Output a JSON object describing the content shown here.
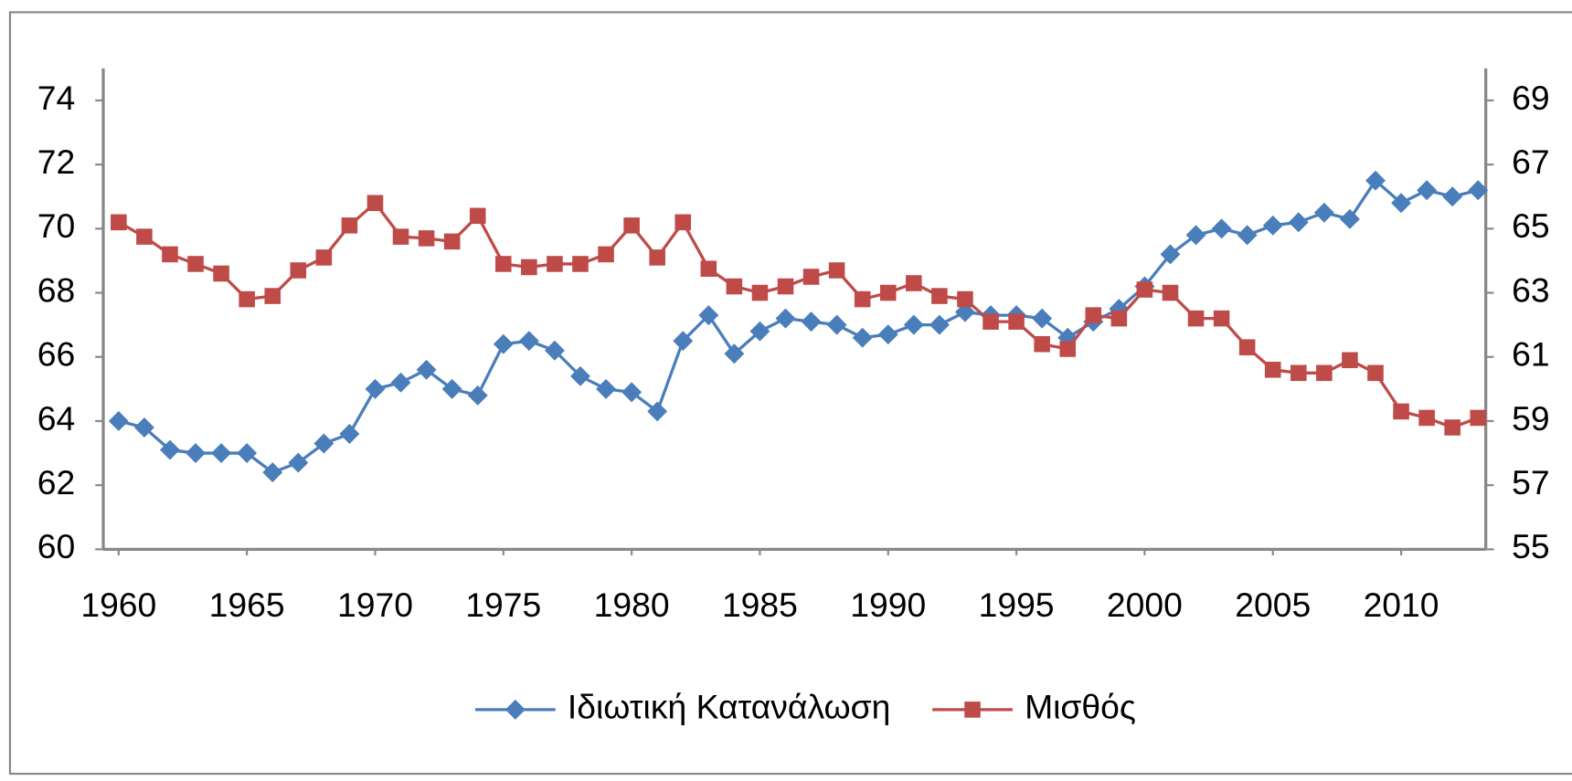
{
  "chart_data": {
    "type": "line",
    "x": [
      1960,
      1961,
      1962,
      1963,
      1964,
      1965,
      1966,
      1967,
      1968,
      1969,
      1970,
      1971,
      1972,
      1973,
      1974,
      1975,
      1976,
      1977,
      1978,
      1979,
      1980,
      1981,
      1982,
      1983,
      1984,
      1985,
      1986,
      1987,
      1988,
      1989,
      1990,
      1991,
      1992,
      1993,
      1994,
      1995,
      1996,
      1997,
      1998,
      1999,
      2000,
      2001,
      2002,
      2003,
      2004,
      2005,
      2006,
      2007,
      2008,
      2009,
      2010,
      2011,
      2012,
      2013
    ],
    "series": [
      {
        "name": "Ιδιωτική Κατανάλωση",
        "color": "#4a7ebb",
        "marker": "diamond",
        "values": [
          64.0,
          63.8,
          63.1,
          63.0,
          63.0,
          63.0,
          62.4,
          62.7,
          63.3,
          63.6,
          65.0,
          65.2,
          65.6,
          65.0,
          64.8,
          66.4,
          66.5,
          66.2,
          65.4,
          65.0,
          64.9,
          64.3,
          66.5,
          67.3,
          66.1,
          66.8,
          67.2,
          67.1,
          67.0,
          66.6,
          66.7,
          67.0,
          67.0,
          67.4,
          67.3,
          67.3,
          67.2,
          66.6,
          67.1,
          67.5,
          68.2,
          69.2,
          69.8,
          70.0,
          69.8,
          70.1,
          70.2,
          70.5,
          70.3,
          71.5,
          70.8,
          71.2,
          71.0,
          71.2
        ]
      },
      {
        "name": "Μισθός",
        "color": "#be4b48",
        "marker": "square",
        "axis": "y2",
        "values": [
          65.2,
          64.75,
          64.2,
          63.9,
          63.6,
          62.8,
          62.9,
          63.7,
          64.1,
          65.1,
          65.8,
          64.75,
          64.7,
          64.6,
          65.4,
          63.9,
          63.8,
          63.9,
          63.9,
          64.2,
          65.1,
          64.1,
          65.2,
          63.75,
          63.2,
          63.0,
          63.2,
          63.5,
          63.7,
          62.8,
          63.0,
          63.3,
          62.9,
          62.8,
          62.1,
          62.1,
          61.4,
          61.25,
          62.3,
          62.2,
          63.1,
          63.0,
          62.2,
          62.2,
          61.3,
          60.6,
          60.5,
          60.5,
          60.9,
          60.5,
          59.3,
          59.1,
          58.8,
          59.1
        ]
      }
    ],
    "xlim": [
      1959.4,
      2013.3
    ],
    "xticks": [
      1960,
      1965,
      1970,
      1975,
      1980,
      1985,
      1990,
      1995,
      2000,
      2005,
      2010
    ],
    "ylim": [
      60,
      74
    ],
    "yticks": [
      60,
      62,
      64,
      66,
      68,
      70,
      72,
      74
    ],
    "y2lim": [
      55,
      69
    ],
    "y2ticks": [
      55,
      57,
      59,
      61,
      63,
      65,
      67,
      69
    ],
    "legend": "bottom"
  }
}
